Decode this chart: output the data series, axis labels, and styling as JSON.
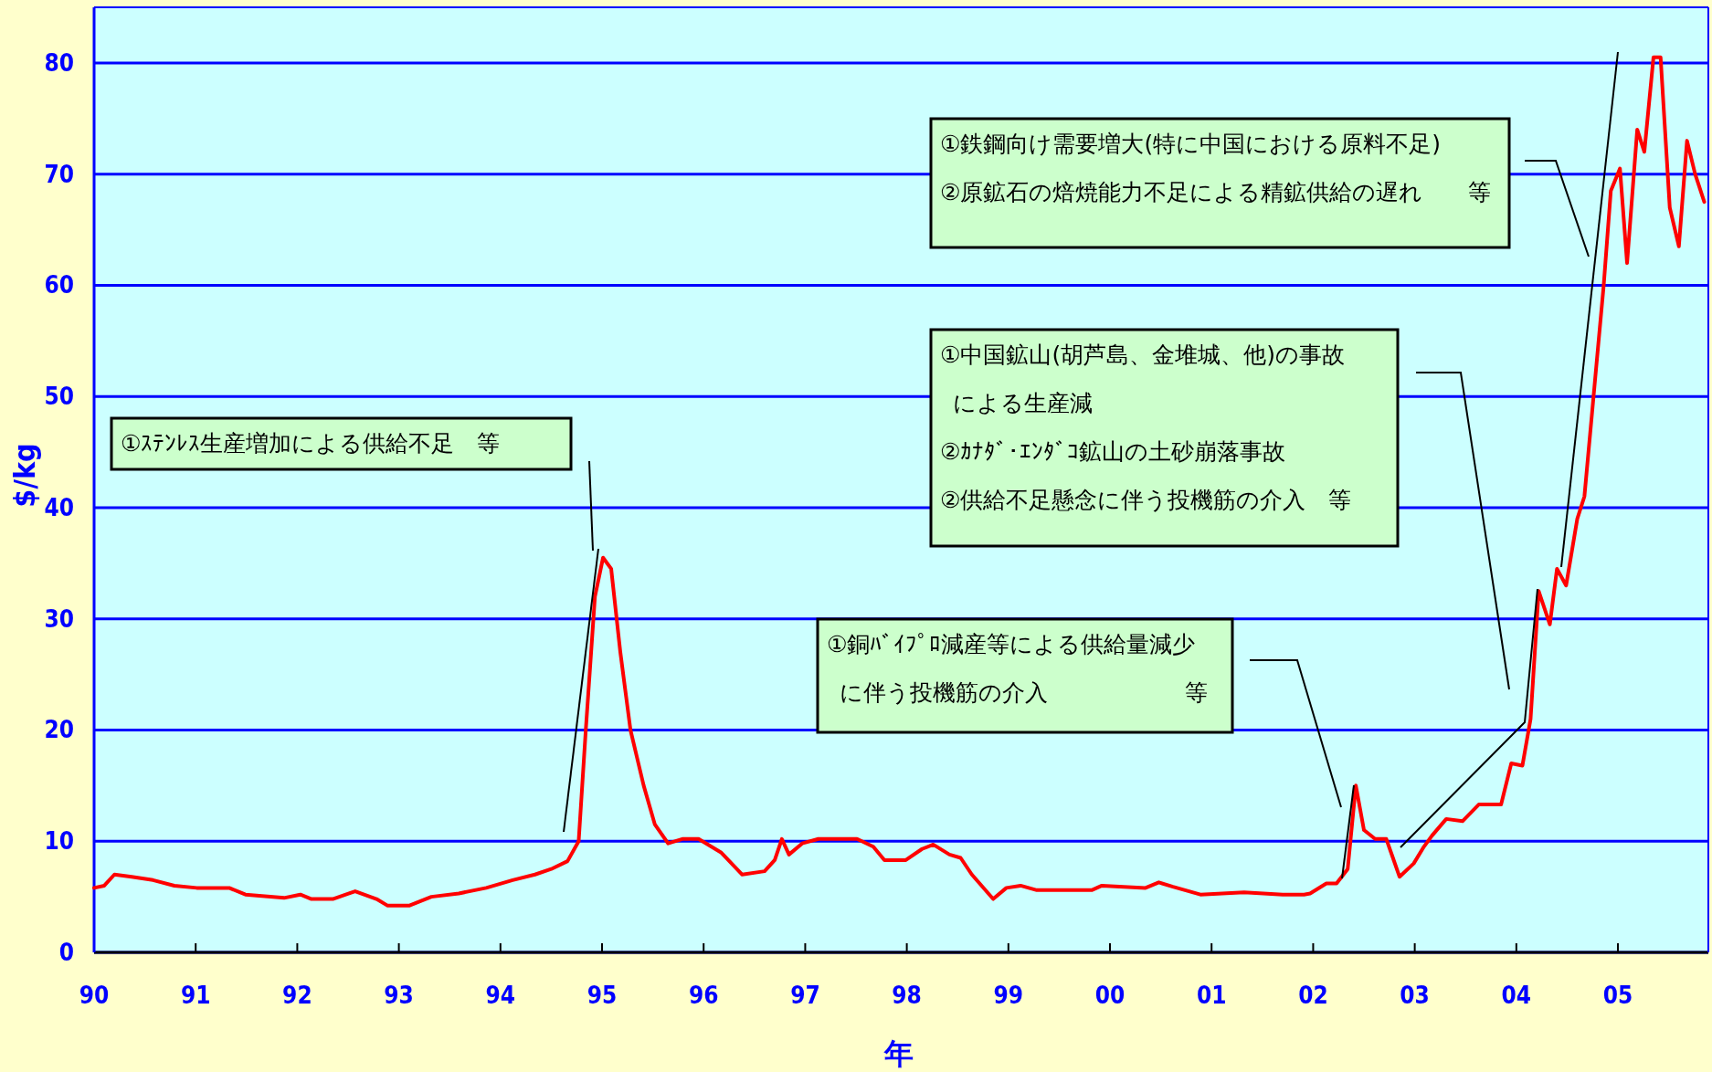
{
  "chart_data": {
    "type": "line",
    "xlabel": "年",
    "ylabel": "$/kg",
    "x": [
      1990,
      1990.1,
      1990.2,
      1990.37,
      1990.58,
      1990.79,
      1991.01,
      1991.33,
      1991.49,
      1991.87,
      1992.03,
      1992.14,
      1992.35,
      1992.51,
      1992.57,
      1992.78,
      1992.89,
      1993.1,
      1993.32,
      1993.59,
      1993.86,
      1994.12,
      1994.34,
      1994.5,
      1994.66,
      1994.77,
      1994.84,
      1994.93,
      1995.01,
      1995.09,
      1995.18,
      1995.28,
      1995.41,
      1995.52,
      1995.65,
      1995.79,
      1995.95,
      1996.17,
      1996.38,
      1996.6,
      1996.7,
      1996.77,
      1996.84,
      1996.97,
      1997.13,
      1997.51,
      1997.67,
      1997.78,
      1997.99,
      1998.15,
      1998.26,
      1998.42,
      1998.53,
      1998.64,
      1998.85,
      1998.98,
      1999.12,
      1999.28,
      1999.82,
      1999.92,
      2000.35,
      2000.48,
      2000.62,
      2000.89,
      2001.32,
      2001.7,
      2001.91,
      2001.97,
      2002.13,
      2002.23,
      2002.34,
      2002.42,
      2002.5,
      2002.61,
      2002.72,
      2002.85,
      2002.99,
      2003.09,
      2003.17,
      2003.31,
      2003.47,
      2003.63,
      2003.85,
      2003.95,
      2004.06,
      2004.14,
      2004.22,
      2004.33,
      2004.4,
      2004.49,
      2004.6,
      2004.67,
      2004.76,
      2004.86,
      2004.93,
      2005.02,
      2005.09,
      2005.19,
      2005.26,
      2005.35,
      2005.42,
      2005.51,
      2005.6,
      2005.68,
      2005.76,
      2005.85
    ],
    "series": [
      {
        "color": "#ff0000",
        "values": [
          5.8,
          6,
          7,
          6.8,
          6.5,
          6,
          5.8,
          5.8,
          5.2,
          4.9,
          5.2,
          4.8,
          4.8,
          5.3,
          5.5,
          4.8,
          4.2,
          4.2,
          5,
          5.3,
          5.8,
          6.5,
          7,
          7.5,
          8.2,
          10,
          20,
          32,
          35.5,
          34.5,
          27,
          20,
          15,
          11.5,
          9.8,
          10.2,
          10.2,
          9,
          7,
          7.3,
          8.3,
          10.2,
          8.8,
          9.8,
          10.2,
          10.2,
          9.5,
          8.3,
          8.3,
          9.3,
          9.7,
          8.8,
          8.5,
          7,
          4.8,
          5.8,
          6,
          5.6,
          5.6,
          6,
          5.8,
          6.3,
          5.9,
          5.2,
          5.4,
          5.2,
          5.2,
          5.3,
          6.2,
          6.2,
          7.5,
          15,
          11,
          10.2,
          10.2,
          6.8,
          8,
          9.5,
          10.5,
          12,
          11.8,
          13.3,
          13.3,
          17,
          16.8,
          21,
          32.5,
          29.5,
          34.5,
          33,
          39,
          41,
          50,
          60,
          68.5,
          70.5,
          62,
          74,
          72,
          80.5,
          80.5,
          67,
          63.5,
          73,
          70,
          67.5
        ]
      }
    ],
    "xlim": [
      1990,
      2005.89
    ],
    "ylim": [
      0,
      85
    ],
    "xticks": [
      {
        "value": 1990,
        "label": "90"
      },
      {
        "value": 1991,
        "label": "91"
      },
      {
        "value": 1992,
        "label": "92"
      },
      {
        "value": 1993,
        "label": "93"
      },
      {
        "value": 1994,
        "label": "94"
      },
      {
        "value": 1995,
        "label": "95"
      },
      {
        "value": 1996,
        "label": "96"
      },
      {
        "value": 1997,
        "label": "97"
      },
      {
        "value": 1998,
        "label": "98"
      },
      {
        "value": 1999,
        "label": "99"
      },
      {
        "value": 2000,
        "label": "00"
      },
      {
        "value": 2001,
        "label": "01"
      },
      {
        "value": 2002,
        "label": "02"
      },
      {
        "value": 2003,
        "label": "03"
      },
      {
        "value": 2004,
        "label": "04"
      },
      {
        "value": 2005,
        "label": "05"
      }
    ],
    "yticks": [
      0,
      10,
      20,
      30,
      40,
      50,
      60,
      70,
      80
    ],
    "grid": "y",
    "annotations": [
      "①ｽﾃﾝﾚｽ生産増加による供給不足　等",
      "①銅ﾊﾞｲﾌﾟﾛ減産等による供給量減少に伴う投機筋の介入　　　　　　等",
      "①中国鉱山(胡芦島、金堆城、他)の事故による生産減",
      "②ｶﾅﾀﾞ･ｴﾝﾀﾞｺ鉱山の土砂崩落事故",
      "②供給不足懸念に伴う投機筋の介入　等",
      "①鉄鋼向け需要増大(特に中国における原料不足)",
      "②原鉱石の焙焼能力不足による精鉱供給の遅れ　　等"
    ]
  }
}
